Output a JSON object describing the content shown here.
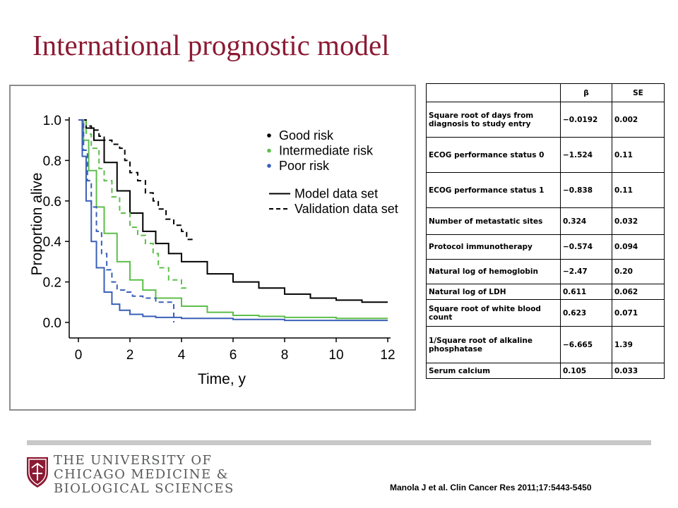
{
  "slide": {
    "title": "International prognostic model",
    "citation": "Manola J et al. Clin Cancer Res 2011;17:5443-5450"
  },
  "logo": {
    "line1": "THE UNIVERSITY OF",
    "line2": "CHICAGO MEDICINE &",
    "line3": "BIOLOGICAL SCIENCES",
    "colors": {
      "shield": "#8b1a33",
      "text": "#58595b"
    }
  },
  "colors": {
    "title": "#8b1a33",
    "good": "#000000",
    "intermediate": "#5cbf4a",
    "poor": "#3a5fb8",
    "frame": "#8c8c8c"
  },
  "chart_data": {
    "type": "line",
    "title": "",
    "xlabel": "Time, y",
    "ylabel": "Proportion alive",
    "xlim": [
      0,
      12
    ],
    "ylim": [
      0,
      1
    ],
    "x_ticks": [
      "0",
      "2",
      "4",
      "6",
      "8",
      "10",
      "12"
    ],
    "y_ticks": [
      "0.0",
      "0.2",
      "0.4",
      "0.6",
      "0.8",
      "1.0"
    ],
    "grid": false,
    "legend_position": "top-right",
    "legend": {
      "groups": [
        {
          "name": "Good risk",
          "color": "#000000"
        },
        {
          "name": "Intermediate risk",
          "color": "#5cbf4a"
        },
        {
          "name": "Poor risk",
          "color": "#3a5fb8"
        }
      ],
      "styles": [
        {
          "name": "Model data set",
          "dash": "solid"
        },
        {
          "name": "Validation data set",
          "dash": "dashed"
        }
      ]
    },
    "series": [
      {
        "group": "Good risk",
        "set": "Model data set",
        "color": "#000000",
        "dash": false,
        "x": [
          0,
          0.3,
          0.6,
          1.0,
          1.5,
          2.0,
          2.5,
          3.0,
          3.5,
          4.0,
          5.0,
          6.0,
          7.0,
          8.0,
          9.0,
          10.0,
          11.0,
          12.0
        ],
        "y": [
          1.0,
          0.96,
          0.9,
          0.79,
          0.65,
          0.54,
          0.45,
          0.39,
          0.34,
          0.3,
          0.24,
          0.2,
          0.17,
          0.14,
          0.12,
          0.11,
          0.1,
          0.1
        ]
      },
      {
        "group": "Intermediate risk",
        "set": "Model data set",
        "color": "#5cbf4a",
        "dash": false,
        "x": [
          0,
          0.2,
          0.4,
          0.7,
          1.0,
          1.5,
          2.0,
          2.5,
          3.0,
          4.0,
          5.0,
          6.0,
          7.0,
          8.0,
          9.0,
          10.0,
          11.0,
          12.0
        ],
        "y": [
          1.0,
          0.9,
          0.75,
          0.57,
          0.44,
          0.3,
          0.21,
          0.16,
          0.12,
          0.08,
          0.05,
          0.035,
          0.03,
          0.025,
          0.025,
          0.02,
          0.02,
          0.02
        ]
      },
      {
        "group": "Poor risk",
        "set": "Model data set",
        "color": "#3a5fb8",
        "dash": false,
        "x": [
          0,
          0.15,
          0.3,
          0.5,
          0.7,
          1.0,
          1.3,
          1.6,
          2.0,
          2.5,
          3.0,
          4.0,
          6.0,
          8.0,
          10.0,
          12.0
        ],
        "y": [
          1.0,
          0.82,
          0.6,
          0.4,
          0.27,
          0.15,
          0.09,
          0.06,
          0.04,
          0.03,
          0.025,
          0.02,
          0.015,
          0.01,
          0.01,
          0.01
        ]
      },
      {
        "group": "Good risk",
        "set": "Validation data set",
        "color": "#000000",
        "dash": true,
        "x": [
          0,
          0.3,
          0.5,
          0.8,
          1.0,
          1.3,
          1.6,
          1.8,
          2.0,
          2.3,
          2.6,
          2.9,
          3.1,
          3.4,
          3.7,
          4.0,
          4.2,
          4.5
        ],
        "y": [
          1.0,
          0.97,
          0.95,
          0.92,
          0.9,
          0.88,
          0.86,
          0.8,
          0.74,
          0.7,
          0.64,
          0.6,
          0.56,
          0.51,
          0.48,
          0.45,
          0.41,
          0.41
        ]
      },
      {
        "group": "Intermediate risk",
        "set": "Validation data set",
        "color": "#5cbf4a",
        "dash": true,
        "x": [
          0,
          0.3,
          0.5,
          0.8,
          1.0,
          1.3,
          1.6,
          2.0,
          2.3,
          2.6,
          2.9,
          3.1,
          3.3,
          3.5,
          3.8,
          4.0,
          4.3
        ],
        "y": [
          1.0,
          0.93,
          0.86,
          0.76,
          0.7,
          0.62,
          0.54,
          0.47,
          0.43,
          0.39,
          0.34,
          0.27,
          0.27,
          0.21,
          0.21,
          0.17,
          0.17
        ]
      },
      {
        "group": "Poor risk",
        "set": "Validation data set",
        "color": "#3a5fb8",
        "dash": true,
        "x": [
          0,
          0.2,
          0.35,
          0.5,
          0.7,
          0.9,
          1.1,
          1.3,
          1.5,
          1.8,
          2.1,
          2.5,
          3.0,
          3.4,
          3.7,
          3.7
        ],
        "y": [
          1.0,
          0.85,
          0.7,
          0.57,
          0.45,
          0.34,
          0.26,
          0.2,
          0.16,
          0.15,
          0.13,
          0.12,
          0.1,
          0.1,
          0.1,
          0.0
        ]
      }
    ]
  },
  "table": {
    "headers": [
      "",
      "β",
      "SE"
    ],
    "rows": [
      [
        "Square root of days from diagnosis to study entry",
        "−0.0192",
        "0.002"
      ],
      [
        "ECOG performance status 0",
        "−1.524",
        "0.11"
      ],
      [
        "ECOG performance status 1",
        "−0.838",
        "0.11"
      ],
      [
        "Number of metastatic sites",
        "0.324",
        "0.032"
      ],
      [
        "Protocol immunotherapy",
        "−0.574",
        "0.094"
      ],
      [
        "Natural log of hemoglobin",
        "−2.47",
        "0.20"
      ],
      [
        "Natural log of LDH",
        "0.611",
        "0.062"
      ],
      [
        "Square root of white blood count",
        "0.623",
        "0.071"
      ],
      [
        "1/Square root of alkaline phosphatase",
        "−6.665",
        "1.39"
      ],
      [
        "Serum calcium",
        "0.105",
        "0.033"
      ]
    ]
  }
}
